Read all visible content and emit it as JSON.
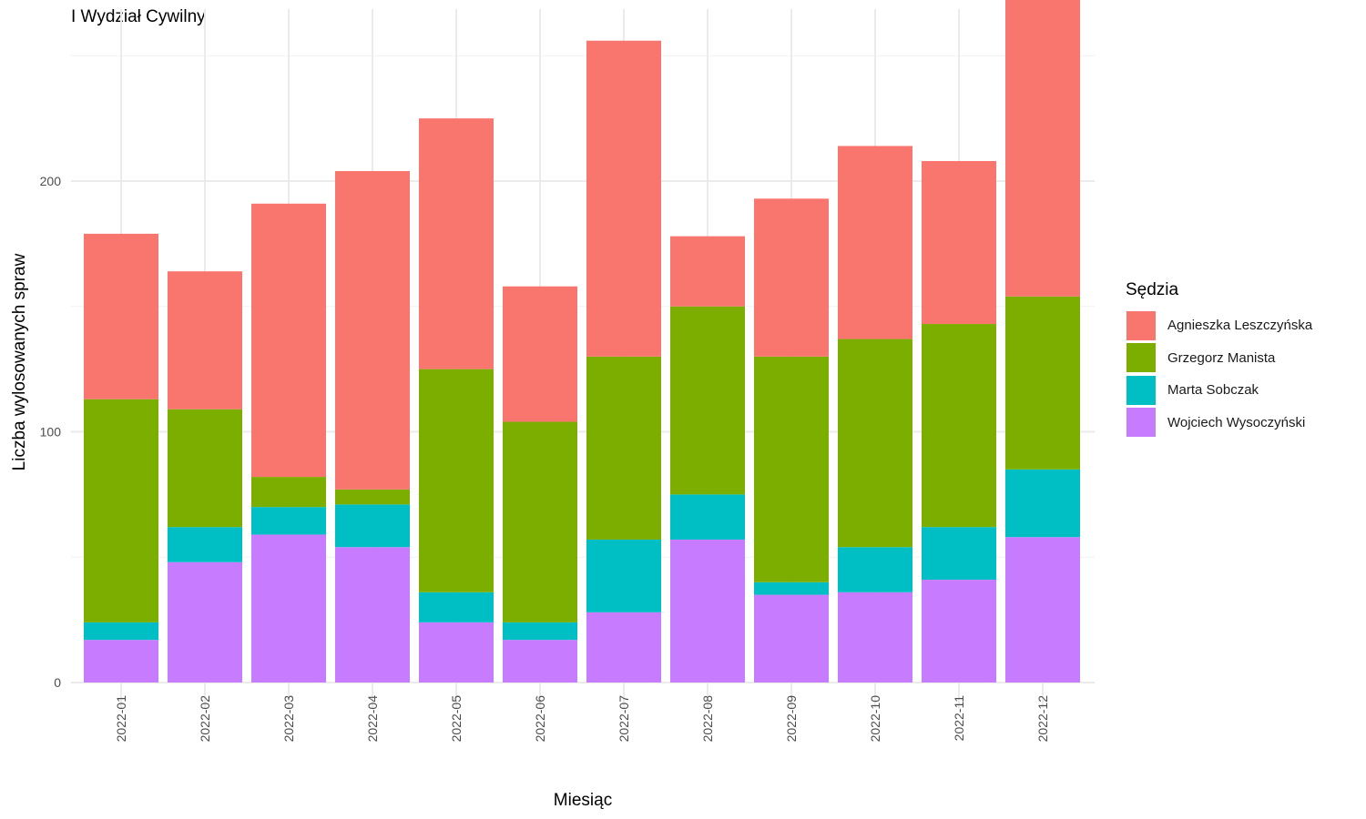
{
  "chart_data": {
    "type": "bar",
    "stacked": true,
    "title": "I Wydział Cywilny",
    "xlabel": "Miesiąc",
    "ylabel": "Liczba wylosowanych spraw",
    "ylim": [
      -10,
      260
    ],
    "yticks": [
      0,
      100,
      200
    ],
    "grid": true,
    "legend_position": "right",
    "legend_title": "Sędzia",
    "categories": [
      "2022-01",
      "2022-02",
      "2022-03",
      "2022-04",
      "2022-05",
      "2022-06",
      "2022-07",
      "2022-08",
      "2022-09",
      "2022-10",
      "2022-11",
      "2022-12"
    ],
    "series": [
      {
        "name": "Wojciech Wysoczyński",
        "color": "#C77CFF",
        "values": [
          17,
          48,
          59,
          54,
          24,
          17,
          28,
          57,
          35,
          36,
          41,
          58
        ]
      },
      {
        "name": "Marta Sobczak",
        "color": "#00BFC4",
        "values": [
          7,
          14,
          11,
          17,
          12,
          7,
          29,
          18,
          5,
          18,
          21,
          27
        ]
      },
      {
        "name": "Grzegorz Manista",
        "color": "#7CAE00",
        "values": [
          89,
          47,
          12,
          6,
          89,
          80,
          73,
          75,
          90,
          83,
          81,
          69
        ]
      },
      {
        "name": "Agnieszka Leszczyńska",
        "color": "#F8766D",
        "values": [
          66,
          55,
          109,
          127,
          100,
          54,
          126,
          28,
          63,
          77,
          65,
          126
        ]
      }
    ]
  }
}
